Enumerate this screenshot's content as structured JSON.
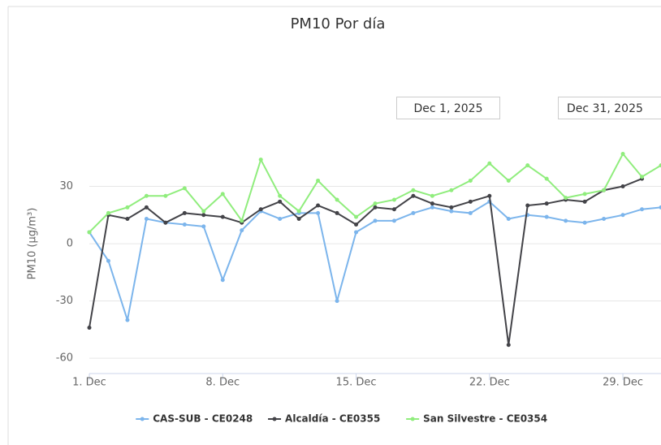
{
  "chart_data": {
    "type": "line",
    "title": "PM10 Por día",
    "y_label": "PM10 (µg/m³)",
    "date_from": "Dec 1, 2025",
    "date_to": "Dec 31, 2025",
    "x": [
      1,
      2,
      3,
      4,
      5,
      6,
      7,
      8,
      9,
      10,
      11,
      12,
      13,
      14,
      15,
      16,
      17,
      18,
      19,
      20,
      21,
      22,
      23,
      24,
      25,
      26,
      27,
      28,
      29,
      30,
      31
    ],
    "xlim": [
      1,
      31
    ],
    "xticks": [
      {
        "value": 1,
        "label": "1. Dec"
      },
      {
        "value": 8,
        "label": "8. Dec"
      },
      {
        "value": 15,
        "label": "15. Dec"
      },
      {
        "value": 22,
        "label": "22. Dec"
      },
      {
        "value": 29,
        "label": "29. Dec"
      }
    ],
    "ylim": [
      -68,
      57
    ],
    "yticks": [
      -60,
      -30,
      0,
      30
    ],
    "grid": true,
    "legend": "bottom",
    "series": [
      {
        "name": "CAS-SUB - CE0248",
        "color": "#7cb5ec",
        "values": [
          6,
          -9,
          -40,
          13,
          11,
          10,
          9,
          -19,
          7,
          17,
          13,
          16,
          16,
          -30,
          6,
          12,
          12,
          16,
          19,
          17,
          16,
          22,
          13,
          15,
          14,
          12,
          11,
          13,
          15,
          18,
          19
        ]
      },
      {
        "name": "Alcaldía - CE0355",
        "color": "#434348",
        "values": [
          -44,
          15,
          13,
          19,
          11,
          16,
          15,
          14,
          11,
          18,
          22,
          13,
          20,
          16,
          10,
          19,
          18,
          25,
          21,
          19,
          22,
          25,
          -53,
          20,
          21,
          23,
          22,
          28,
          30,
          34,
          null
        ]
      },
      {
        "name": "San Silvestre - CE0354",
        "color": "#90ed7d",
        "values": [
          6,
          16,
          19,
          25,
          25,
          29,
          17,
          26,
          12,
          44,
          25,
          17,
          33,
          23,
          14,
          21,
          23,
          28,
          25,
          28,
          33,
          42,
          33,
          41,
          34,
          24,
          26,
          28,
          47,
          35,
          41
        ]
      }
    ]
  }
}
